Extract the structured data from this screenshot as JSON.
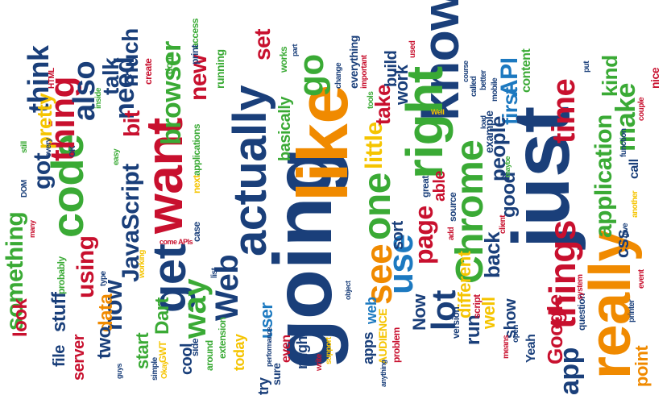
{
  "colors": {
    "navy": "#1a3f7a",
    "orange": "#f08a00",
    "green": "#3aaa35",
    "red": "#c8102e",
    "yellow": "#f5c400",
    "blue": "#1c79c0"
  },
  "words": [
    {
      "text": "going",
      "color": "navy"
    },
    {
      "text": "just",
      "color": "navy"
    },
    {
      "text": "like",
      "color": "orange"
    },
    {
      "text": "actually",
      "color": "navy"
    },
    {
      "text": "really",
      "color": "orange"
    },
    {
      "text": "want",
      "color": "red"
    },
    {
      "text": "know",
      "color": "navy"
    },
    {
      "text": "right",
      "color": "green"
    },
    {
      "text": "get",
      "color": "navy"
    },
    {
      "text": "code",
      "color": "green"
    },
    {
      "text": "Chrome",
      "color": "green"
    },
    {
      "text": "things",
      "color": "red"
    },
    {
      "text": "one",
      "color": "green"
    },
    {
      "text": "see",
      "color": "orange"
    },
    {
      "text": "Web",
      "color": "navy"
    },
    {
      "text": "time",
      "color": "red"
    },
    {
      "text": "thing",
      "color": "red"
    },
    {
      "text": "go",
      "color": "green"
    },
    {
      "text": "use",
      "color": "blue"
    },
    {
      "text": "make",
      "color": "green"
    },
    {
      "text": "think",
      "color": "navy"
    },
    {
      "text": "also",
      "color": "navy"
    },
    {
      "text": "JavaScript",
      "color": "navy"
    },
    {
      "text": "browser",
      "color": "green"
    },
    {
      "text": "need",
      "color": "navy"
    },
    {
      "text": "way",
      "color": "green"
    },
    {
      "text": "new",
      "color": "red"
    },
    {
      "text": "lot",
      "color": "navy"
    },
    {
      "text": "Google",
      "color": "red"
    },
    {
      "text": "app",
      "color": "navy"
    },
    {
      "text": "application",
      "color": "green"
    },
    {
      "text": "page",
      "color": "red"
    },
    {
      "text": "now",
      "color": "navy"
    },
    {
      "text": "something",
      "color": "green"
    },
    {
      "text": "little",
      "color": "yellow"
    },
    {
      "text": "API",
      "color": "blue"
    },
    {
      "text": "kind",
      "color": "green"
    },
    {
      "text": "using",
      "color": "red"
    },
    {
      "text": "much",
      "color": "navy"
    },
    {
      "text": "talk",
      "color": "navy"
    },
    {
      "text": "got",
      "color": "navy"
    },
    {
      "text": "pretty",
      "color": "yellow"
    },
    {
      "text": "bit",
      "color": "red"
    },
    {
      "text": "set",
      "color": "red"
    },
    {
      "text": "take",
      "color": "red"
    },
    {
      "text": "work",
      "color": "navy"
    },
    {
      "text": "first",
      "color": "blue"
    },
    {
      "text": "people",
      "color": "navy"
    },
    {
      "text": "back",
      "color": "navy"
    },
    {
      "text": "good",
      "color": "navy"
    },
    {
      "text": "different",
      "color": "yellow"
    },
    {
      "text": "stuff",
      "color": "navy"
    },
    {
      "text": "look",
      "color": "red"
    },
    {
      "text": "data",
      "color": "orange"
    },
    {
      "text": "Dart",
      "color": "green"
    },
    {
      "text": "two",
      "color": "navy"
    },
    {
      "text": "start",
      "color": "green"
    },
    {
      "text": "user",
      "color": "blue"
    },
    {
      "text": "run",
      "color": "navy"
    },
    {
      "text": "Now",
      "color": "navy"
    },
    {
      "text": "well",
      "color": "yellow"
    },
    {
      "text": "show",
      "color": "navy"
    },
    {
      "text": "css",
      "color": "navy"
    },
    {
      "text": "point",
      "color": "orange"
    },
    {
      "text": "file",
      "color": "navy"
    },
    {
      "text": "server",
      "color": "red"
    },
    {
      "text": "cool",
      "color": "navy"
    },
    {
      "text": "today",
      "color": "yellow"
    },
    {
      "text": "basically",
      "color": "green"
    },
    {
      "text": "build",
      "color": "navy"
    },
    {
      "text": "able",
      "color": "red"
    },
    {
      "text": "sort",
      "color": "navy"
    },
    {
      "text": "apps",
      "color": "navy"
    },
    {
      "text": "web",
      "color": "blue"
    },
    {
      "text": "AUDIENCE",
      "color": "yellow"
    },
    {
      "text": "example",
      "color": "navy"
    },
    {
      "text": "content",
      "color": "green"
    },
    {
      "text": "call",
      "color": "navy"
    },
    {
      "text": "Yeah",
      "color": "navy"
    },
    {
      "text": "might",
      "color": "navy"
    },
    {
      "text": "even",
      "color": "red"
    },
    {
      "text": "try",
      "color": "navy"
    },
    {
      "text": "sure",
      "color": "navy"
    },
    {
      "text": "running",
      "color": "green"
    },
    {
      "text": "works",
      "color": "green"
    },
    {
      "text": "everything",
      "color": "navy"
    },
    {
      "text": "great",
      "color": "navy"
    },
    {
      "text": "create",
      "color": "red"
    },
    {
      "text": "done",
      "color": "green"
    },
    {
      "text": "access",
      "color": "green"
    },
    {
      "text": "print",
      "color": "navy"
    },
    {
      "text": "easy",
      "color": "green"
    },
    {
      "text": "every",
      "color": "navy"
    },
    {
      "text": "still",
      "color": "green"
    },
    {
      "text": "DOM",
      "color": "navy"
    },
    {
      "text": "OK",
      "color": "navy"
    },
    {
      "text": "HTML",
      "color": "red"
    },
    {
      "text": "inside",
      "color": "green"
    },
    {
      "text": "applications",
      "color": "green"
    },
    {
      "text": "next",
      "color": "yellow"
    },
    {
      "text": "case",
      "color": "navy"
    },
    {
      "text": "list",
      "color": "navy"
    },
    {
      "text": "come APIs",
      "color": "red"
    },
    {
      "text": "working",
      "color": "yellow"
    },
    {
      "text": "around",
      "color": "green"
    },
    {
      "text": "side",
      "color": "navy"
    },
    {
      "text": "extension",
      "color": "green"
    },
    {
      "text": "performance",
      "color": "navy"
    },
    {
      "text": "write",
      "color": "red"
    },
    {
      "text": "support",
      "color": "yellow"
    },
    {
      "text": "version",
      "color": "navy"
    },
    {
      "text": "problem",
      "color": "red"
    },
    {
      "text": "anything",
      "color": "navy"
    },
    {
      "text": "object",
      "color": "navy"
    },
    {
      "text": "add",
      "color": "red"
    },
    {
      "text": "source",
      "color": "navy"
    },
    {
      "text": "script",
      "color": "red"
    },
    {
      "text": "tools",
      "color": "green"
    },
    {
      "text": "change",
      "color": "navy"
    },
    {
      "text": "important",
      "color": "red"
    },
    {
      "text": "used",
      "color": "red"
    },
    {
      "text": "course",
      "color": "navy"
    },
    {
      "text": "called",
      "color": "navy"
    },
    {
      "text": "Well",
      "color": "yellow"
    },
    {
      "text": "better",
      "color": "navy"
    },
    {
      "text": "mobile",
      "color": "navy"
    },
    {
      "text": "load",
      "color": "navy"
    },
    {
      "text": "maybe",
      "color": "green"
    },
    {
      "text": "client",
      "color": "red"
    },
    {
      "text": "open",
      "color": "navy"
    },
    {
      "text": "means",
      "color": "red"
    },
    {
      "text": "question",
      "color": "navy"
    },
    {
      "text": "system",
      "color": "red"
    },
    {
      "text": "put",
      "color": "navy"
    },
    {
      "text": "function",
      "color": "navy"
    },
    {
      "text": "give",
      "color": "navy"
    },
    {
      "text": "another",
      "color": "yellow"
    },
    {
      "text": "printer",
      "color": "navy"
    },
    {
      "text": "event",
      "color": "red"
    },
    {
      "text": "couple",
      "color": "red"
    },
    {
      "text": "nice",
      "color": "red"
    },
    {
      "text": "probably",
      "color": "green"
    },
    {
      "text": "type",
      "color": "navy"
    },
    {
      "text": "simple",
      "color": "navy"
    },
    {
      "text": "GWT",
      "color": "yellow"
    },
    {
      "text": "guys",
      "color": "navy"
    },
    {
      "text": "Okay",
      "color": "yellow"
    },
    {
      "text": "many",
      "color": "red"
    },
    {
      "text": "part",
      "color": "navy"
    }
  ]
}
